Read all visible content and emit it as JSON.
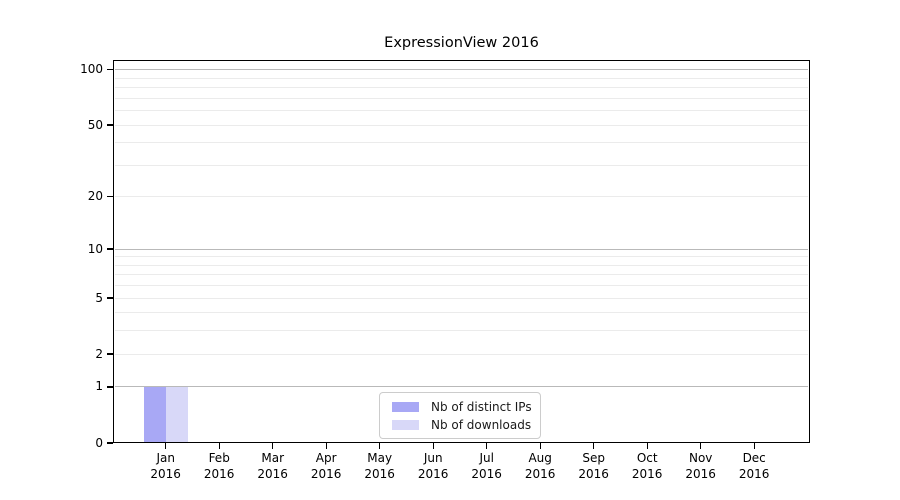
{
  "chart_data": {
    "type": "bar",
    "title": "ExpressionView 2016",
    "x_categories": [
      "Jan",
      "Feb",
      "Mar",
      "Apr",
      "May",
      "Jun",
      "Jul",
      "Aug",
      "Sep",
      "Oct",
      "Nov",
      "Dec"
    ],
    "x_year_label": "2016",
    "series": [
      {
        "name": "Nb of distinct IPs",
        "color": "#a8a8f5",
        "values": [
          1,
          0,
          0,
          0,
          0,
          0,
          0,
          0,
          0,
          0,
          0,
          0
        ]
      },
      {
        "name": "Nb of downloads",
        "color": "#d8d8f8",
        "values": [
          1,
          0,
          0,
          0,
          0,
          0,
          0,
          0,
          0,
          0,
          0,
          0
        ]
      }
    ],
    "yscale": "log1p",
    "ylim": [
      0,
      113
    ],
    "ytick_labels": [
      0,
      1,
      2,
      5,
      10,
      20,
      50,
      100
    ],
    "grid": {
      "major_values": [
        1,
        10,
        100
      ],
      "minor_values": [
        2,
        3,
        4,
        5,
        6,
        7,
        8,
        9,
        20,
        30,
        40,
        50,
        60,
        70,
        80,
        90
      ],
      "major_color": "#b9b9b9",
      "minor_color": "#ebebeb"
    },
    "legend": {
      "position": "lower center",
      "entries": [
        "Nb of distinct IPs",
        "Nb of downloads"
      ]
    },
    "colors": {
      "background": "#ffffff",
      "axis": "#000000",
      "text": "#000000",
      "legend_border": "#cccccc"
    }
  }
}
